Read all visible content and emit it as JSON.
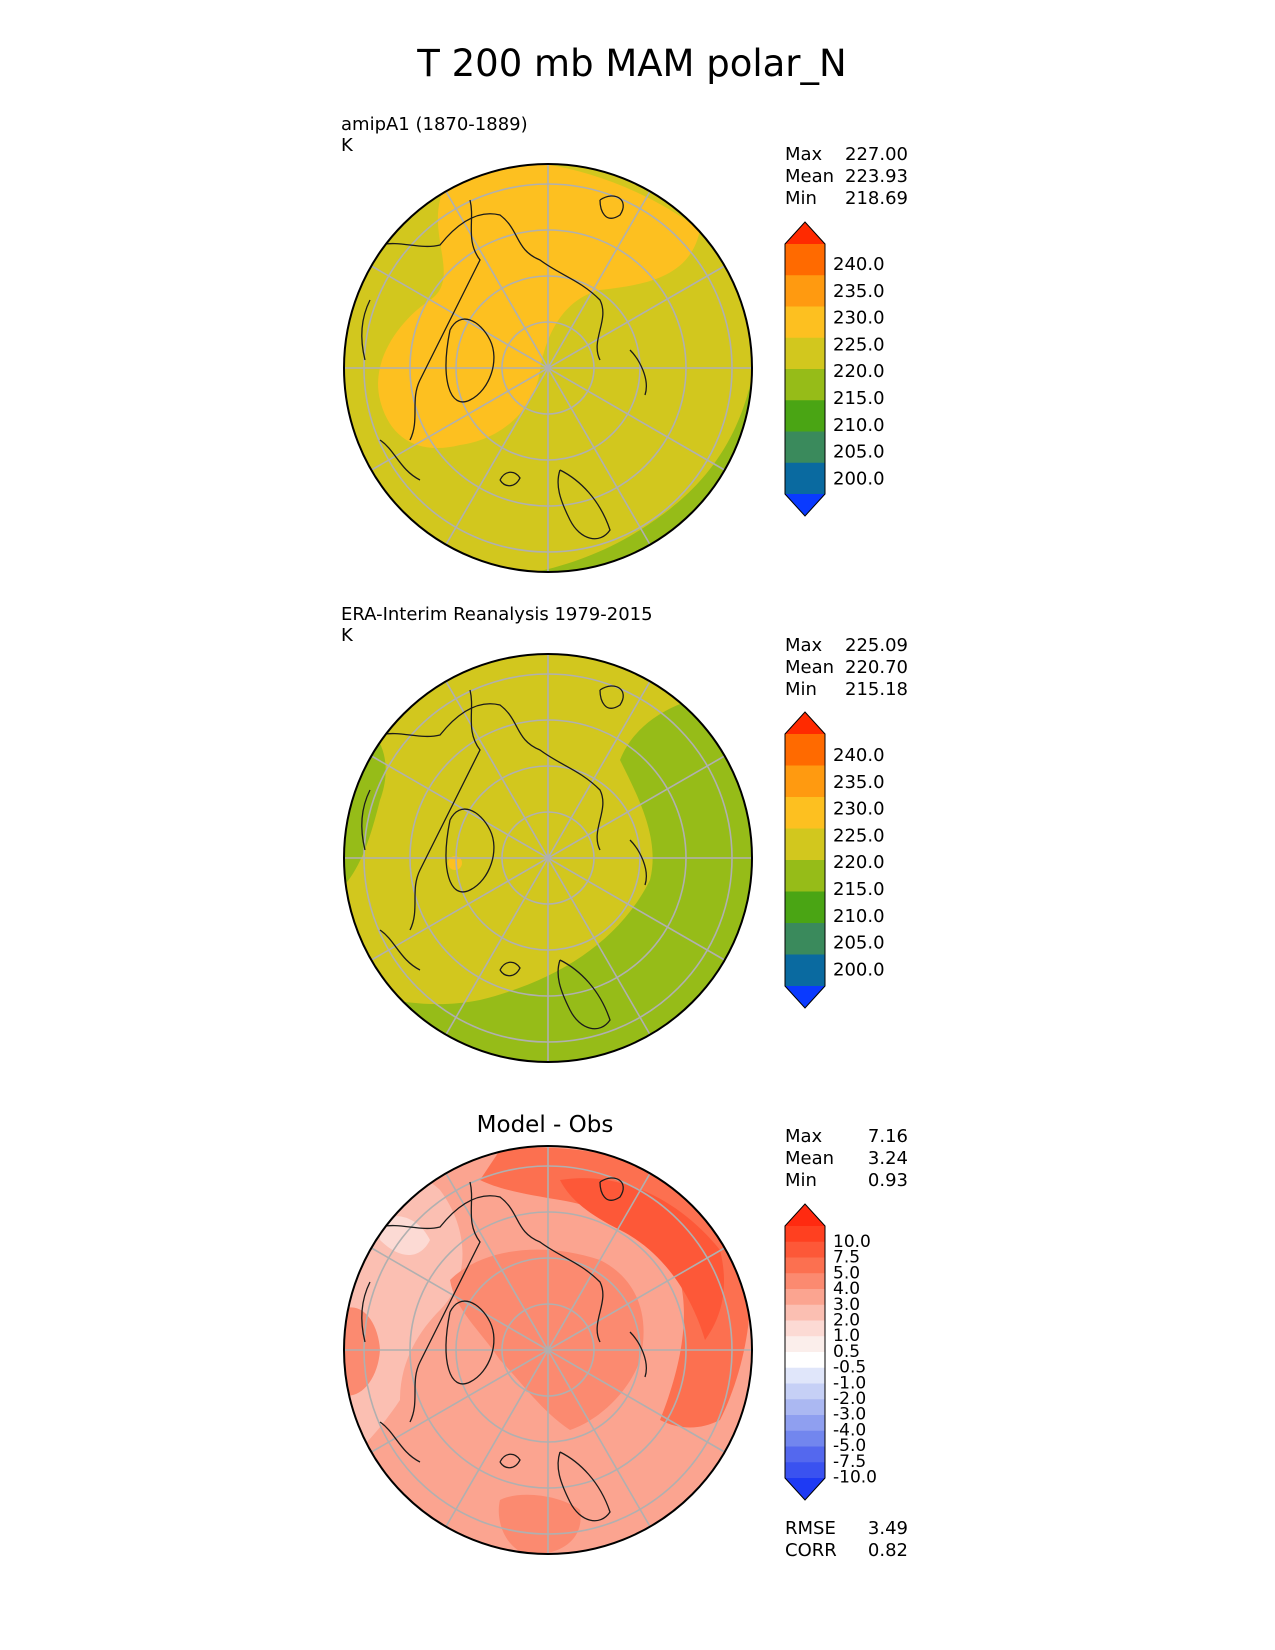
{
  "figure": {
    "title": "T 200 mb MAM polar_N"
  },
  "panels": [
    {
      "id": "model",
      "title_line1": "amipA1 (1870-1889)",
      "title_line2": "K",
      "stats": [
        {
          "label": "Max",
          "value": "227.00"
        },
        {
          "label": "Mean",
          "value": "223.93"
        },
        {
          "label": "Min",
          "value": "218.69"
        }
      ]
    },
    {
      "id": "obs",
      "title_line1": "ERA-Interim Reanalysis 1979-2015",
      "title_line2": "K",
      "stats": [
        {
          "label": "Max",
          "value": "225.09"
        },
        {
          "label": "Mean",
          "value": "220.70"
        },
        {
          "label": "Min",
          "value": "215.18"
        }
      ]
    },
    {
      "id": "diff",
      "center_title": "Model - Obs",
      "stats": [
        {
          "label": "Max",
          "value": "7.16"
        },
        {
          "label": "Mean",
          "value": "3.24"
        },
        {
          "label": "Min",
          "value": "0.93"
        }
      ],
      "metrics": [
        {
          "label": "RMSE",
          "value": "3.49"
        },
        {
          "label": "CORR",
          "value": "0.82"
        }
      ]
    }
  ],
  "colorbars": {
    "abs": {
      "ticks": [
        "240.0",
        "235.0",
        "230.0",
        "225.0",
        "220.0",
        "215.0",
        "210.0",
        "205.0",
        "200.0"
      ],
      "colors": [
        "#ff2a00",
        "#ff6a00",
        "#ff9a10",
        "#fdc020",
        "#d2c71e",
        "#96bc18",
        "#4aa514",
        "#3a8a5c",
        "#0a6aa0",
        "#0a3aff"
      ]
    },
    "diff": {
      "ticks": [
        "10.0",
        "7.5",
        "5.0",
        "4.0",
        "3.0",
        "2.0",
        "1.0",
        "0.5",
        "-0.5",
        "-1.0",
        "-2.0",
        "-3.0",
        "-4.0",
        "-5.0",
        "-7.5",
        "-10.0"
      ],
      "colors": [
        "#ff2a10",
        "#ff4020",
        "#fd5838",
        "#fc7050",
        "#fb8a70",
        "#fba490",
        "#fbbfb2",
        "#fcdad4",
        "#fbeeeb",
        "#ffffff",
        "#e0e6fa",
        "#c6d0f6",
        "#abb8f2",
        "#8f9ff0",
        "#7286ee",
        "#5468ee",
        "#3a52f0",
        "#1e3af4"
      ]
    }
  }
}
